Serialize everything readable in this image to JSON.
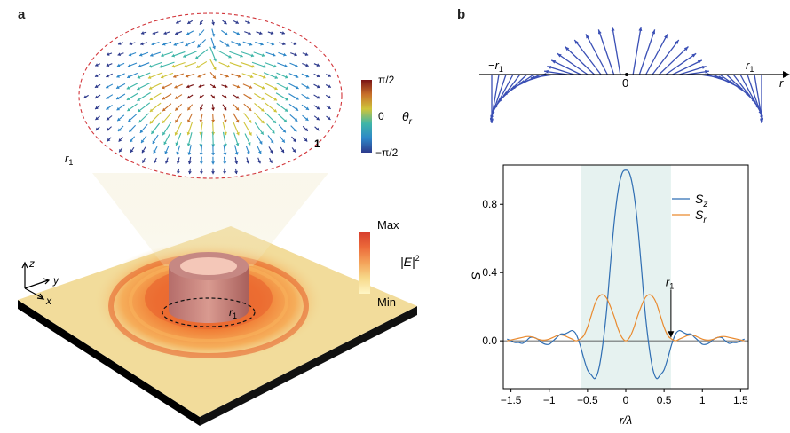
{
  "panel_a": {
    "letter": "a",
    "spin_texture": {
      "radius_label": "r",
      "radius_subscript": "1",
      "skyrmion_number_label": "1",
      "colorbar": {
        "variable": "θ",
        "variable_subscript": "r",
        "top_label": "π/2",
        "mid_label": "0",
        "bottom_label": "−π/2",
        "colors": [
          "#2d3a8c",
          "#2e87c8",
          "#3fb6a8",
          "#cfc43a",
          "#c8702a",
          "#7a1414"
        ]
      }
    },
    "intensity": {
      "colorbar": {
        "variable": "|E|",
        "superscript": "2",
        "top_label": "Max",
        "bottom_label": "Min",
        "colors": [
          "#fff6c6",
          "#f7d98a",
          "#f4a35a",
          "#ec6a3a",
          "#d63c2c"
        ]
      },
      "ring_label": "r",
      "ring_subscript": "1"
    },
    "axes": {
      "z": "z",
      "y": "y",
      "x": "x"
    },
    "colors": {
      "plate_top": "#f2dc9b",
      "plate_side": "#000000",
      "glow": "#f4a035"
    }
  },
  "panel_b": {
    "letter": "b",
    "top": {
      "axis_label": "r",
      "left_label": "−r",
      "left_subscript": "1",
      "right_label": "r",
      "right_subscript": "1",
      "zero_label": "0",
      "arrow_color": "#3a4fb5"
    },
    "chart_data": {
      "type": "line",
      "xlabel": "r/λ",
      "ylabel": "S",
      "xlim": [
        -1.6,
        1.6
      ],
      "ylim": [
        -0.28,
        1.03
      ],
      "xticks": [
        "−1.5",
        "−1",
        "−0.5",
        "0",
        "0.5",
        "1",
        "1.5"
      ],
      "xtick_values": [
        -1.5,
        -1,
        -0.5,
        0,
        0.5,
        1,
        1.5
      ],
      "yticks": [
        "0.0",
        "0.4",
        "0.8"
      ],
      "ytick_values": [
        0.0,
        0.4,
        0.8
      ],
      "shaded_region": [
        -0.59,
        0.59
      ],
      "annotation": {
        "label": "r",
        "subscript": "1",
        "x": 0.59
      },
      "series": [
        {
          "name": "S",
          "name_subscript": "z",
          "color": "#2f6eb3",
          "x": [
            -1.55,
            -1.5,
            -1.45,
            -1.4,
            -1.35,
            -1.3,
            -1.25,
            -1.2,
            -1.15,
            -1.1,
            -1.05,
            -1.0,
            -0.95,
            -0.9,
            -0.85,
            -0.8,
            -0.75,
            -0.7,
            -0.65,
            -0.6,
            -0.55,
            -0.5,
            -0.45,
            -0.4,
            -0.35,
            -0.3,
            -0.25,
            -0.2,
            -0.15,
            -0.1,
            -0.05,
            0.0,
            0.05,
            0.1,
            0.15,
            0.2,
            0.25,
            0.3,
            0.35,
            0.4,
            0.45,
            0.5,
            0.55,
            0.6,
            0.65,
            0.7,
            0.75,
            0.8,
            0.85,
            0.9,
            0.95,
            1.0,
            1.05,
            1.1,
            1.15,
            1.2,
            1.25,
            1.3,
            1.35,
            1.4,
            1.45,
            1.5,
            1.55
          ],
          "values": [
            0.01,
            0.0,
            -0.01,
            -0.01,
            -0.015,
            0.0,
            0.02,
            0.02,
            0.01,
            -0.01,
            -0.02,
            -0.02,
            0.0,
            0.02,
            0.04,
            0.04,
            0.05,
            0.06,
            0.04,
            -0.02,
            -0.1,
            -0.17,
            -0.2,
            -0.22,
            -0.16,
            -0.02,
            0.18,
            0.45,
            0.7,
            0.88,
            0.98,
            1.0,
            0.98,
            0.88,
            0.7,
            0.45,
            0.18,
            -0.02,
            -0.16,
            -0.22,
            -0.2,
            -0.17,
            -0.1,
            -0.02,
            0.04,
            0.06,
            0.05,
            0.04,
            0.04,
            0.02,
            0.0,
            -0.02,
            -0.02,
            -0.01,
            0.01,
            0.02,
            0.02,
            0.0,
            -0.015,
            -0.01,
            -0.01,
            0.0,
            0.01
          ]
        },
        {
          "name": "S",
          "name_subscript": "r",
          "color": "#e98a2f",
          "x": [
            -1.55,
            -1.5,
            -1.45,
            -1.4,
            -1.35,
            -1.3,
            -1.25,
            -1.2,
            -1.15,
            -1.1,
            -1.05,
            -1.0,
            -0.95,
            -0.9,
            -0.85,
            -0.8,
            -0.75,
            -0.7,
            -0.65,
            -0.6,
            -0.55,
            -0.5,
            -0.45,
            -0.4,
            -0.35,
            -0.3,
            -0.25,
            -0.2,
            -0.15,
            -0.1,
            -0.05,
            0.0,
            0.05,
            0.1,
            0.15,
            0.2,
            0.25,
            0.3,
            0.35,
            0.4,
            0.45,
            0.5,
            0.55,
            0.6,
            0.65,
            0.7,
            0.75,
            0.8,
            0.85,
            0.9,
            0.95,
            1.0,
            1.05,
            1.1,
            1.15,
            1.2,
            1.25,
            1.3,
            1.35,
            1.4,
            1.45,
            1.5,
            1.55
          ],
          "values": [
            0.0,
            0.005,
            0.01,
            0.015,
            0.02,
            0.025,
            0.025,
            0.02,
            0.01,
            0.005,
            0.005,
            0.01,
            0.02,
            0.03,
            0.035,
            0.03,
            0.02,
            0.01,
            0.0,
            0.01,
            0.03,
            0.08,
            0.15,
            0.22,
            0.26,
            0.27,
            0.25,
            0.2,
            0.14,
            0.07,
            0.02,
            0.0,
            0.02,
            0.07,
            0.14,
            0.2,
            0.25,
            0.27,
            0.26,
            0.22,
            0.15,
            0.08,
            0.03,
            0.01,
            0.0,
            0.01,
            0.02,
            0.03,
            0.035,
            0.03,
            0.02,
            0.01,
            0.005,
            0.005,
            0.01,
            0.02,
            0.025,
            0.025,
            0.02,
            0.015,
            0.01,
            0.005,
            0.0
          ]
        }
      ]
    }
  }
}
